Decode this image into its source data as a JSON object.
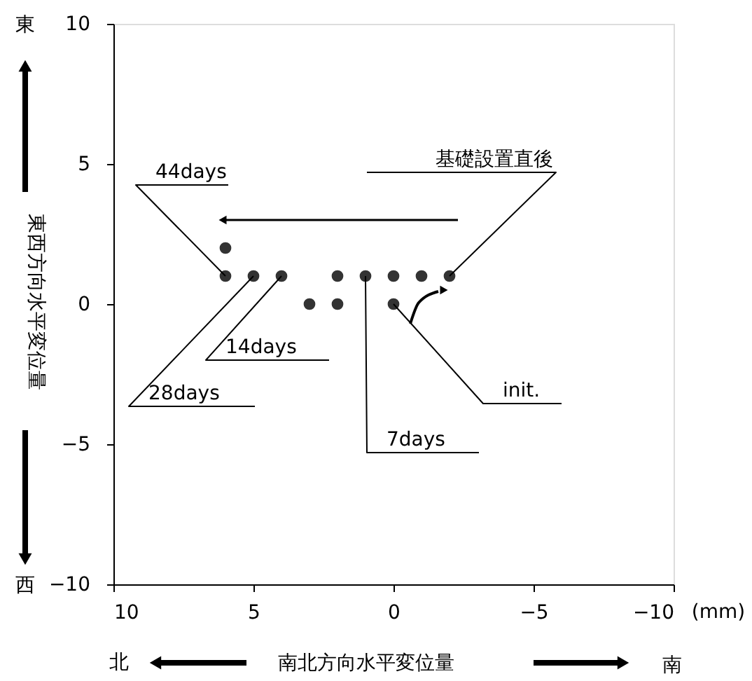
{
  "chart_data": {
    "type": "scatter",
    "xlabel": "南北方向水平変位量",
    "ylabel": "東西方向水平変位量",
    "x": [
      6,
      6,
      5,
      4,
      2,
      1,
      0,
      -1,
      -2,
      3,
      2,
      0
    ],
    "values": [
      2,
      1,
      1,
      1,
      1,
      1,
      1,
      1,
      1,
      0,
      0,
      0
    ],
    "color": "#333333",
    "marker": "circle",
    "xlim": [
      10,
      -10
    ],
    "xticks": [
      10,
      5,
      0,
      -5,
      -10
    ],
    "ylim": [
      -10,
      10
    ],
    "yticks": [
      -10,
      -5,
      0,
      5,
      10
    ],
    "grid": false,
    "annotations": [
      {
        "text": "44days",
        "x": 6,
        "y": 1
      },
      {
        "text": "基礎設置直後",
        "x": -2,
        "y": 1
      },
      {
        "text": "14days",
        "x": 4,
        "y": 1
      },
      {
        "text": "28days",
        "x": 5,
        "y": 1
      },
      {
        "text": "7days",
        "x": 1,
        "y": 1
      },
      {
        "text": "init.",
        "x": 0,
        "y": 0
      },
      "東",
      "西",
      "北",
      "南",
      "(mm)"
    ]
  }
}
